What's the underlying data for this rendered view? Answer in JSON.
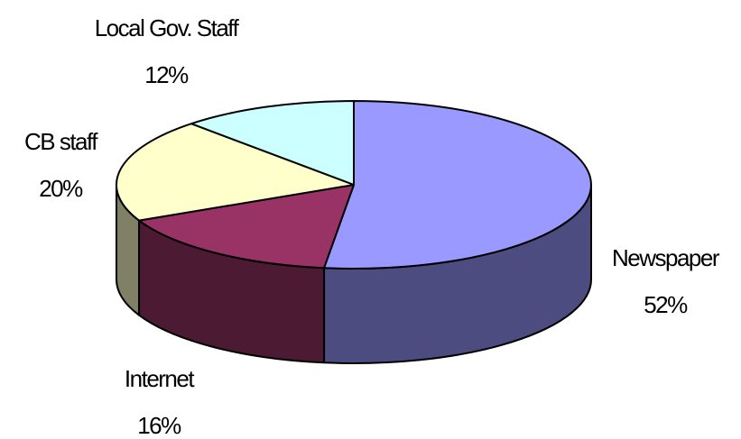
{
  "chart_data": {
    "type": "pie",
    "style": "3d-exploded-none",
    "start_position": "top",
    "direction": "clockwise",
    "slices": [
      {
        "label": "Newspaper",
        "value": 52,
        "value_label": "52%",
        "color": "#9999ff",
        "side_color": "#4c4c80"
      },
      {
        "label": "Internet",
        "value": 16,
        "value_label": "16%",
        "color": "#993366",
        "side_color": "#4d1a33"
      },
      {
        "label": "CB staff",
        "value": 20,
        "value_label": "20%",
        "color": "#ffffcc",
        "side_color": "#808066"
      },
      {
        "label": "Local Gov. Staff",
        "value": 12,
        "value_label": "12%",
        "color": "#ccffff",
        "side_color": "#668080"
      }
    ],
    "legend": "none"
  }
}
